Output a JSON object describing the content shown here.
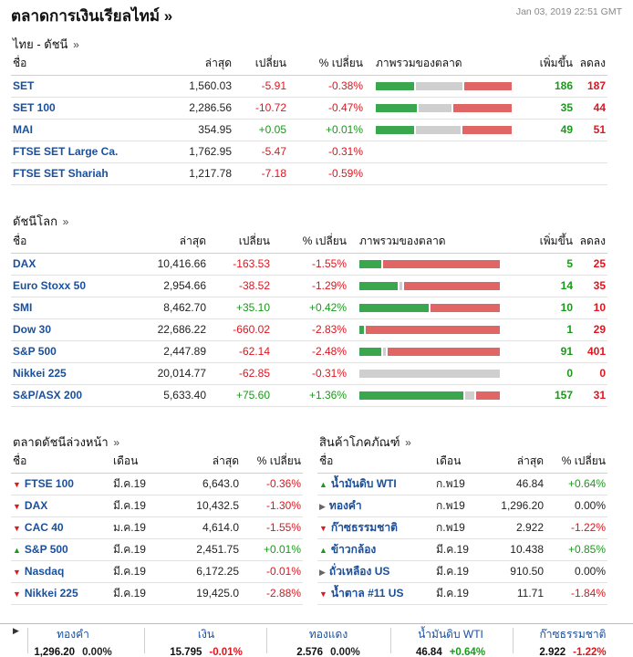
{
  "header": {
    "title": "ตลาดการเงินเรียลไทม์ »",
    "datetime": "Jan 03, 2019 22:51 GMT"
  },
  "colors": {
    "up": "#1a9a1a",
    "down": "#e0151e",
    "link": "#1a4f9c",
    "bar_green": "#3aa64e",
    "bar_gray": "#cfcfcf",
    "bar_red": "#e06565"
  },
  "thai": {
    "title": "ไทย - ดัชนี",
    "more": "»",
    "columns": [
      "ชื่อ",
      "ล่าสุด",
      "เปลี่ยน",
      "% เปลี่ยน",
      "ภาพรวมของตลาด",
      "เพิ่มขึ้น",
      "ลดลง"
    ],
    "rows": [
      {
        "name": "SET",
        "last": "1,560.03",
        "chg": "-5.91",
        "pct": "-0.38%",
        "dir": "down",
        "up": "186",
        "down": "187",
        "bar": [
          0.29,
          0.35,
          0.36
        ]
      },
      {
        "name": "SET 100",
        "last": "2,286.56",
        "chg": "-10.72",
        "pct": "-0.47%",
        "dir": "down",
        "up": "35",
        "down": "44",
        "bar": [
          0.31,
          0.25,
          0.44
        ]
      },
      {
        "name": "MAI",
        "last": "354.95",
        "chg": "+0.05",
        "pct": "+0.01%",
        "dir": "up",
        "up": "49",
        "down": "51",
        "bar": [
          0.29,
          0.34,
          0.37
        ]
      },
      {
        "name": "FTSE SET Large Ca.",
        "last": "1,762.95",
        "chg": "-5.47",
        "pct": "-0.31%",
        "dir": "down",
        "up": "",
        "down": "",
        "bar": null
      },
      {
        "name": "FTSE SET Shariah",
        "last": "1,217.78",
        "chg": "-7.18",
        "pct": "-0.59%",
        "dir": "down",
        "up": "",
        "down": "",
        "bar": null
      }
    ]
  },
  "world": {
    "title": "ดัชนีโลก",
    "more": "»",
    "columns": [
      "ชื่อ",
      "ล่าสุด",
      "เปลี่ยน",
      "% เปลี่ยน",
      "ภาพรวมของตลาด",
      "เพิ่มขึ้น",
      "ลดลง"
    ],
    "rows": [
      {
        "name": "DAX",
        "last": "10,416.66",
        "chg": "-163.53",
        "pct": "-1.55%",
        "dir": "down",
        "up": "5",
        "down": "25",
        "bar": [
          0.16,
          0.0,
          0.84
        ]
      },
      {
        "name": "Euro Stoxx 50",
        "last": "2,954.66",
        "chg": "-38.52",
        "pct": "-1.29%",
        "dir": "down",
        "up": "14",
        "down": "35",
        "bar": [
          0.28,
          0.02,
          0.7
        ]
      },
      {
        "name": "SMI",
        "last": "8,462.70",
        "chg": "+35.10",
        "pct": "+0.42%",
        "dir": "up",
        "up": "10",
        "down": "10",
        "bar": [
          0.5,
          0.0,
          0.5
        ]
      },
      {
        "name": "Dow 30",
        "last": "22,686.22",
        "chg": "-660.02",
        "pct": "-2.83%",
        "dir": "down",
        "up": "1",
        "down": "29",
        "bar": [
          0.03,
          0.0,
          0.97
        ]
      },
      {
        "name": "S&P 500",
        "last": "2,447.89",
        "chg": "-62.14",
        "pct": "-2.48%",
        "dir": "down",
        "up": "91",
        "down": "401",
        "bar": [
          0.16,
          0.02,
          0.82
        ]
      },
      {
        "name": "Nikkei 225",
        "last": "20,014.77",
        "chg": "-62.85",
        "pct": "-0.31%",
        "dir": "down",
        "up": "0",
        "down": "0",
        "bar": [
          0.0,
          1.0,
          0.0
        ]
      },
      {
        "name": "S&P/ASX 200",
        "last": "5,633.40",
        "chg": "+75.60",
        "pct": "+1.36%",
        "dir": "up",
        "up": "157",
        "down": "31",
        "bar": [
          0.76,
          0.07,
          0.17
        ]
      }
    ]
  },
  "futures": {
    "title": "ตลาดดัชนีล่วงหน้า",
    "more": "»",
    "columns": [
      "ชื่อ",
      "เดือน",
      "ล่าสุด",
      "% เปลี่ยน"
    ],
    "rows": [
      {
        "name": "FTSE 100",
        "month": "มี.ค.19",
        "last": "6,643.0",
        "pct": "-0.36%",
        "dir": "down"
      },
      {
        "name": "DAX",
        "month": "มี.ค.19",
        "last": "10,432.5",
        "pct": "-1.30%",
        "dir": "down"
      },
      {
        "name": "CAC 40",
        "month": "ม.ค.19",
        "last": "4,614.0",
        "pct": "-1.55%",
        "dir": "down"
      },
      {
        "name": "S&P 500",
        "month": "มี.ค.19",
        "last": "2,451.75",
        "pct": "+0.01%",
        "dir": "up"
      },
      {
        "name": "Nasdaq",
        "month": "มี.ค.19",
        "last": "6,172.25",
        "pct": "-0.01%",
        "dir": "down"
      },
      {
        "name": "Nikkei 225",
        "month": "มี.ค.19",
        "last": "19,425.0",
        "pct": "-2.88%",
        "dir": "down"
      }
    ]
  },
  "commodities": {
    "title": "สินค้าโภคภัณฑ์",
    "more": "»",
    "columns": [
      "ชื่อ",
      "เดือน",
      "ล่าสุด",
      "% เปลี่ยน"
    ],
    "rows": [
      {
        "name": "น้ำมันดิบ WTI",
        "month": "ก.พ19",
        "last": "46.84",
        "pct": "+0.64%",
        "dir": "up"
      },
      {
        "name": "ทองคำ",
        "month": "ก.พ19",
        "last": "1,296.20",
        "pct": "0.00%",
        "dir": "flat"
      },
      {
        "name": "ก๊าซธรรมชาติ",
        "month": "ก.พ19",
        "last": "2.922",
        "pct": "-1.22%",
        "dir": "down"
      },
      {
        "name": "ข้าวกล้อง",
        "month": "มี.ค.19",
        "last": "10.438",
        "pct": "+0.85%",
        "dir": "up"
      },
      {
        "name": "ถั่วเหลือง US",
        "month": "มี.ค.19",
        "last": "910.50",
        "pct": "0.00%",
        "dir": "flat"
      },
      {
        "name": "น้ำตาล #11 US",
        "month": "มี.ค.19",
        "last": "11.71",
        "pct": "-1.84%",
        "dir": "down"
      }
    ]
  },
  "ticker": [
    {
      "name": "ทองคำ",
      "value": "1,296.20",
      "pct": "0.00%",
      "dir": "flat"
    },
    {
      "name": "เงิน",
      "value": "15.795",
      "pct": "-0.01%",
      "dir": "down"
    },
    {
      "name": "ทองแดง",
      "value": "2.576",
      "pct": "0.00%",
      "dir": "flat"
    },
    {
      "name": "น้ำมันดิบ WTI",
      "value": "46.84",
      "pct": "+0.64%",
      "dir": "up"
    },
    {
      "name": "ก๊าซธรรมชาติ",
      "value": "2.922",
      "pct": "-1.22%",
      "dir": "down"
    }
  ]
}
